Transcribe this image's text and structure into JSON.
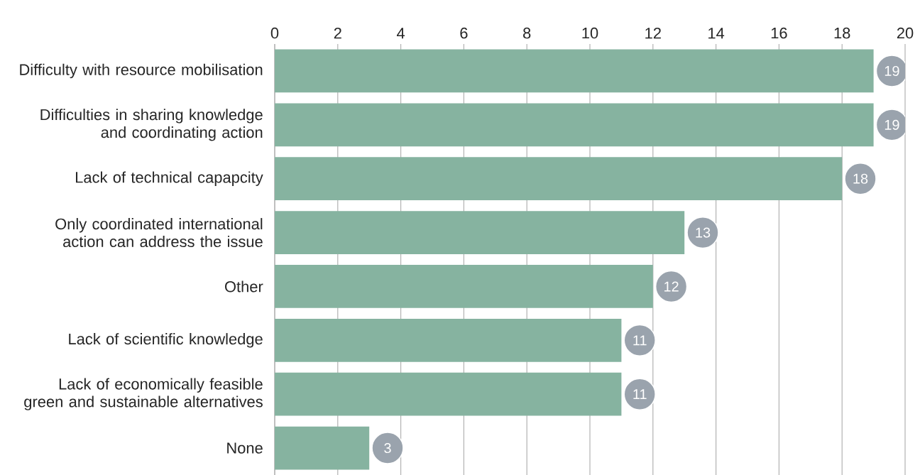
{
  "chart_data": {
    "type": "bar",
    "orientation": "horizontal",
    "categories": [
      "Difficulty with resource mobilisation",
      "Difficulties in sharing knowledge and coordinating action",
      "Lack of technical capapcity",
      "Only coordinated international action can address the issue",
      "Other",
      "Lack of scientific knowledge",
      "Lack of economically feasible green and sustainable alternatives",
      "None"
    ],
    "values": [
      19,
      19,
      18,
      13,
      12,
      11,
      11,
      3
    ],
    "color": "#86b3a0",
    "xlim": [
      0,
      20
    ],
    "xticks": [
      0,
      2,
      4,
      6,
      8,
      10,
      12,
      14,
      16,
      18,
      20
    ],
    "grid": "x",
    "data_labels": true
  }
}
